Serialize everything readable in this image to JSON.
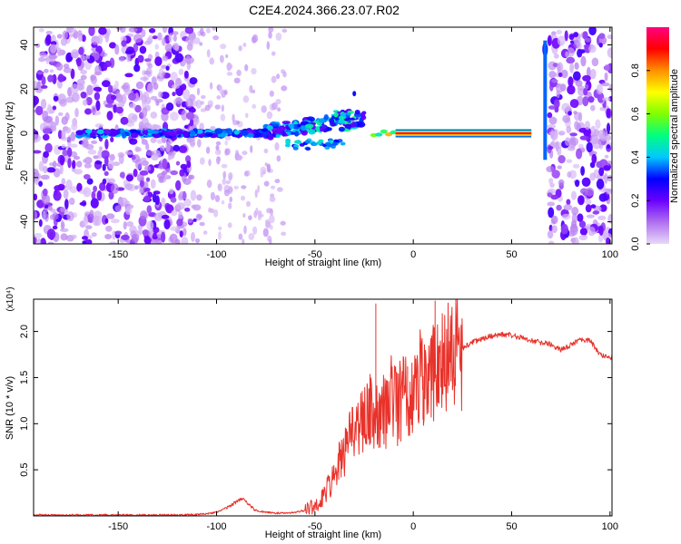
{
  "figure": {
    "title": "C2E4.2024.366.23.07.R02"
  },
  "chart_data": [
    {
      "type": "heatmap",
      "title": "C2E4.2024.366.23.07.R02",
      "xlabel": "Height of straight line (km)",
      "ylabel": "Frequency (Hz)",
      "xlim": [
        -193,
        101
      ],
      "ylim": [
        -50,
        48
      ],
      "xticks": [
        -150,
        -100,
        -50,
        0,
        50,
        100
      ],
      "yticks": [
        -40,
        -20,
        0,
        20,
        40
      ],
      "colorbar": {
        "label": "Normalized spectral amplitude",
        "range": [
          0,
          1
        ],
        "ticks": [
          "0.0",
          "0.2",
          "0.4",
          "0.6",
          "0.8"
        ],
        "colors": [
          "#e8d8f8",
          "#b070f0",
          "#6a00ff",
          "#0000ff",
          "#00c8ff",
          "#00ff80",
          "#80ff00",
          "#ffff00",
          "#ff9000",
          "#ff0000",
          "#ff0080"
        ]
      },
      "features": [
        {
          "name": "broadband noise",
          "x": [
            -193,
            -110
          ],
          "y": [
            -50,
            48
          ],
          "amplitude": 0.15
        },
        {
          "name": "broadband noise",
          "x": [
            69,
            101
          ],
          "y": [
            -50,
            48
          ],
          "amplitude": 0.2
        },
        {
          "name": "signal band",
          "x": [
            -170,
            -25
          ],
          "y": [
            -7,
            12
          ],
          "amplitude": 0.3
        },
        {
          "name": "tone",
          "x": [
            -20,
            60
          ],
          "y": [
            0,
            0
          ],
          "amplitude": 0.95
        },
        {
          "name": "vertical streak",
          "x": [
            66,
            68
          ],
          "y": [
            -12,
            42
          ],
          "amplitude": 0.35
        }
      ]
    },
    {
      "type": "line",
      "xlabel": "Height of straight line (km)",
      "ylabel": "SNR (10 * v/v)",
      "y_multiplier": "(x10⁴)",
      "xlim": [
        -193,
        101
      ],
      "ylim": [
        0,
        2.35
      ],
      "xticks": [
        -150,
        -100,
        -50,
        0,
        50,
        100
      ],
      "yticks": [
        "0.5",
        "1.0",
        "1.5",
        "2.0"
      ],
      "color": "#e8322a",
      "x": [
        -193,
        -180,
        -160,
        -140,
        -120,
        -105,
        -100,
        -95,
        -90,
        -87,
        -84,
        -80,
        -75,
        -70,
        -65,
        -60,
        -55,
        -50,
        -47,
        -44,
        -41,
        -38,
        -35,
        -32,
        -29,
        -26,
        -23,
        -20,
        -17,
        -14,
        -11,
        -8,
        -5,
        -2,
        1,
        4,
        7,
        10,
        13,
        16,
        20,
        25,
        30,
        35,
        40,
        45,
        50,
        55,
        60,
        65,
        70,
        75,
        80,
        85,
        90,
        95,
        101
      ],
      "y": [
        0.01,
        0.01,
        0.01,
        0.01,
        0.01,
        0.02,
        0.04,
        0.09,
        0.15,
        0.19,
        0.13,
        0.06,
        0.04,
        0.03,
        0.03,
        0.04,
        0.06,
        0.12,
        0.18,
        0.28,
        0.38,
        0.55,
        0.68,
        0.86,
        0.95,
        1.02,
        1.2,
        1.05,
        1.12,
        1.1,
        1.3,
        1.15,
        1.38,
        1.2,
        1.4,
        1.5,
        1.35,
        1.62,
        1.55,
        1.7,
        1.78,
        1.82,
        1.88,
        1.92,
        1.95,
        1.97,
        1.96,
        1.93,
        1.9,
        1.88,
        1.86,
        1.8,
        1.85,
        1.92,
        1.9,
        1.75,
        1.72
      ],
      "spikes": [
        {
          "x": -25,
          "y": 1.22
        },
        {
          "x": -19,
          "y": 2.3
        },
        {
          "x": -11,
          "y": 1.55
        },
        {
          "x": -3,
          "y": 1.62
        },
        {
          "x": 5,
          "y": 1.05
        },
        {
          "x": 11,
          "y": 2.33
        }
      ]
    }
  ]
}
